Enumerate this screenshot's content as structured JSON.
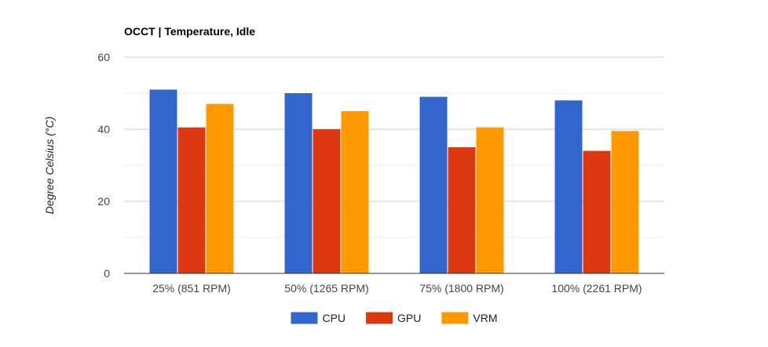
{
  "chart_data": {
    "type": "bar",
    "title": "OCCT | Temperature, Idle",
    "xlabel": "",
    "ylabel": "Degree Celsius (°C)",
    "ylim": [
      0,
      60
    ],
    "yticks": [
      0,
      20,
      40,
      60
    ],
    "minor_gridlines": [
      10,
      30,
      50
    ],
    "grid": true,
    "legend_position": "bottom",
    "categories": [
      "25% (851 RPM)",
      "50% (1265 RPM)",
      "75% (1800 RPM)",
      "100% (2261 RPM)"
    ],
    "series": [
      {
        "name": "CPU",
        "color": "#3366cc",
        "values": [
          51,
          50,
          49,
          48
        ]
      },
      {
        "name": "GPU",
        "color": "#dc3912",
        "values": [
          40.5,
          40,
          35,
          34
        ]
      },
      {
        "name": "VRM",
        "color": "#ff9900",
        "values": [
          47,
          45,
          40.5,
          39.5
        ]
      }
    ]
  }
}
